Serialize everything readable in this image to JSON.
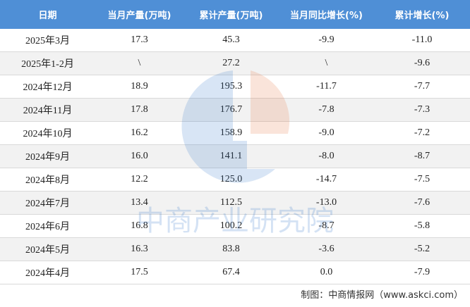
{
  "table": {
    "header": [
      "日期",
      "当月产量(万吨)",
      "累计产量(万吨)",
      "当月同比增长(%)",
      "累计增长(%)"
    ],
    "rows": [
      [
        "2025年3月",
        "17.3",
        "45.3",
        "-9.9",
        "-11.0"
      ],
      [
        "2025年1-2月",
        "\\",
        "27.2",
        "\\",
        "-9.6"
      ],
      [
        "2024年12月",
        "18.9",
        "195.3",
        "-11.7",
        "-7.7"
      ],
      [
        "2024年11月",
        "17.8",
        "176.7",
        "-7.8",
        "-7.3"
      ],
      [
        "2024年10月",
        "16.2",
        "158.9",
        "-9.0",
        "-7.2"
      ],
      [
        "2024年9月",
        "16.0",
        "141.1",
        "-8.0",
        "-8.7"
      ],
      [
        "2024年8月",
        "12.2",
        "125.0",
        "-14.7",
        "-7.5"
      ],
      [
        "2024年7月",
        "13.4",
        "112.5",
        "-13.0",
        "-7.6"
      ],
      [
        "2024年6月",
        "16.8",
        "100.2",
        "-8.7",
        "-5.8"
      ],
      [
        "2024年5月",
        "16.3",
        "83.8",
        "-3.6",
        "-5.2"
      ],
      [
        "2024年4月",
        "17.5",
        "67.4",
        "0.0",
        "-7.9"
      ]
    ]
  },
  "watermark": "中商产业研究院",
  "footer": "制图：中商情报网（www.askci.com）"
}
